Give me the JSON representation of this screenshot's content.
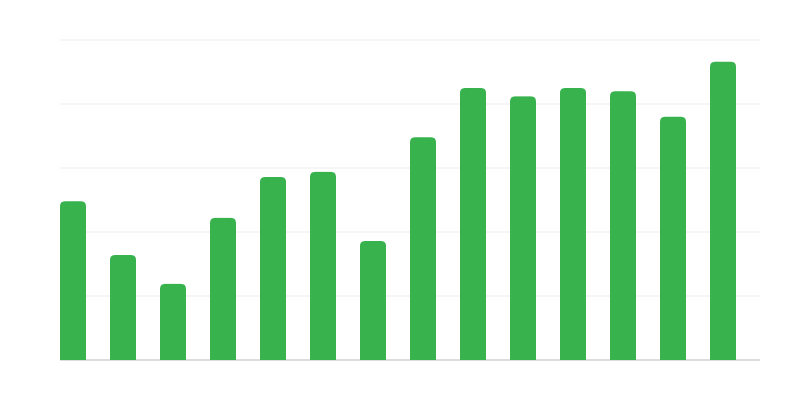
{
  "chart_data": {
    "type": "bar",
    "categories": [
      null,
      null,
      null,
      null,
      null,
      null,
      null,
      null,
      null,
      null,
      null,
      null,
      null,
      null
    ],
    "values": [
      2.48,
      1.64,
      1.19,
      2.22,
      2.86,
      2.94,
      1.86,
      3.48,
      4.25,
      4.12,
      4.25,
      4.2,
      3.8,
      4.66
    ],
    "color": "#37b24d",
    "ylim": [
      0,
      5
    ],
    "yticks": [
      0,
      1,
      2,
      3,
      4,
      5
    ],
    "grid": true
  }
}
